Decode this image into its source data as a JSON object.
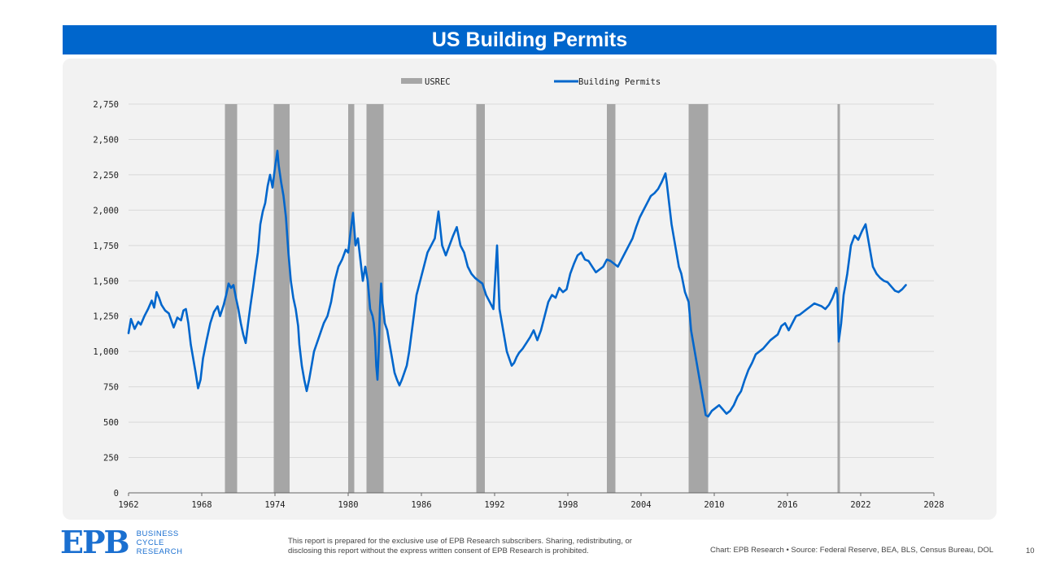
{
  "header": {
    "title": "US Building Permits"
  },
  "chart_data": {
    "type": "line",
    "legend": {
      "placement": "top-center",
      "recession_label": "USREC",
      "series_label": "Building Permits"
    },
    "grid": true,
    "ylim": [
      0,
      2750
    ],
    "yticks": [
      "0",
      "250",
      "500",
      "750",
      "1,000",
      "1,250",
      "1,500",
      "1,750",
      "2,000",
      "2,250",
      "2,500",
      "2,750"
    ],
    "xlim": [
      1962,
      2028
    ],
    "xticks": [
      "1962",
      "1968",
      "1974",
      "1980",
      "1986",
      "1992",
      "1998",
      "2004",
      "2010",
      "2016",
      "2022",
      "2028"
    ],
    "recessions": [
      [
        1969.9,
        1970.9
      ],
      [
        1973.9,
        1975.2
      ],
      [
        1980.0,
        1980.5
      ],
      [
        1981.5,
        1982.9
      ],
      [
        1990.5,
        1991.2
      ],
      [
        2001.2,
        2001.9
      ],
      [
        2007.9,
        2009.5
      ],
      [
        2020.1,
        2020.3
      ]
    ],
    "series": [
      {
        "name": "Building Permits",
        "color": "#0066cc",
        "points": [
          [
            1962.0,
            1130
          ],
          [
            1962.2,
            1230
          ],
          [
            1962.5,
            1160
          ],
          [
            1962.8,
            1210
          ],
          [
            1963.0,
            1190
          ],
          [
            1963.3,
            1250
          ],
          [
            1963.6,
            1300
          ],
          [
            1963.9,
            1360
          ],
          [
            1964.1,
            1310
          ],
          [
            1964.3,
            1420
          ],
          [
            1964.5,
            1380
          ],
          [
            1964.7,
            1330
          ],
          [
            1965.0,
            1290
          ],
          [
            1965.3,
            1270
          ],
          [
            1965.5,
            1220
          ],
          [
            1965.7,
            1170
          ],
          [
            1966.0,
            1240
          ],
          [
            1966.3,
            1220
          ],
          [
            1966.5,
            1290
          ],
          [
            1966.7,
            1300
          ],
          [
            1966.9,
            1200
          ],
          [
            1967.1,
            1050
          ],
          [
            1967.3,
            950
          ],
          [
            1967.5,
            850
          ],
          [
            1967.7,
            740
          ],
          [
            1967.9,
            800
          ],
          [
            1968.1,
            950
          ],
          [
            1968.4,
            1080
          ],
          [
            1968.7,
            1200
          ],
          [
            1969.0,
            1280
          ],
          [
            1969.3,
            1320
          ],
          [
            1969.5,
            1250
          ],
          [
            1969.8,
            1330
          ],
          [
            1970.0,
            1400
          ],
          [
            1970.2,
            1480
          ],
          [
            1970.4,
            1450
          ],
          [
            1970.6,
            1470
          ],
          [
            1970.8,
            1380
          ],
          [
            1971.0,
            1300
          ],
          [
            1971.2,
            1200
          ],
          [
            1971.4,
            1120
          ],
          [
            1971.6,
            1060
          ],
          [
            1971.8,
            1200
          ],
          [
            1972.0,
            1330
          ],
          [
            1972.2,
            1450
          ],
          [
            1972.4,
            1580
          ],
          [
            1972.6,
            1700
          ],
          [
            1972.8,
            1900
          ],
          [
            1973.0,
            1990
          ],
          [
            1973.2,
            2050
          ],
          [
            1973.4,
            2170
          ],
          [
            1973.6,
            2250
          ],
          [
            1973.8,
            2160
          ],
          [
            1974.0,
            2300
          ],
          [
            1974.2,
            2420
          ],
          [
            1974.3,
            2320
          ],
          [
            1974.5,
            2200
          ],
          [
            1974.7,
            2100
          ],
          [
            1974.9,
            1950
          ],
          [
            1975.1,
            1700
          ],
          [
            1975.3,
            1500
          ],
          [
            1975.5,
            1380
          ],
          [
            1975.7,
            1300
          ],
          [
            1975.9,
            1180
          ],
          [
            1976.0,
            1050
          ],
          [
            1976.2,
            900
          ],
          [
            1976.4,
            800
          ],
          [
            1976.6,
            720
          ],
          [
            1976.8,
            800
          ],
          [
            1977.0,
            900
          ],
          [
            1977.2,
            1000
          ],
          [
            1977.4,
            1050
          ],
          [
            1977.6,
            1100
          ],
          [
            1977.8,
            1150
          ],
          [
            1978.0,
            1200
          ],
          [
            1978.3,
            1250
          ],
          [
            1978.6,
            1350
          ],
          [
            1978.9,
            1500
          ],
          [
            1979.2,
            1600
          ],
          [
            1979.5,
            1650
          ],
          [
            1979.8,
            1720
          ],
          [
            1980.0,
            1700
          ],
          [
            1980.2,
            1850
          ],
          [
            1980.4,
            1980
          ],
          [
            1980.6,
            1750
          ],
          [
            1980.8,
            1800
          ],
          [
            1981.0,
            1650
          ],
          [
            1981.2,
            1500
          ],
          [
            1981.4,
            1600
          ],
          [
            1981.6,
            1500
          ],
          [
            1981.8,
            1300
          ],
          [
            1982.0,
            1250
          ],
          [
            1982.1,
            1200
          ],
          [
            1982.2,
            1100
          ],
          [
            1982.3,
            900
          ],
          [
            1982.4,
            800
          ],
          [
            1982.5,
            1000
          ],
          [
            1982.6,
            1300
          ],
          [
            1982.7,
            1480
          ],
          [
            1982.8,
            1350
          ],
          [
            1982.9,
            1280
          ],
          [
            1983.0,
            1200
          ],
          [
            1983.2,
            1150
          ],
          [
            1983.4,
            1050
          ],
          [
            1983.6,
            950
          ],
          [
            1983.8,
            850
          ],
          [
            1984.0,
            800
          ],
          [
            1984.2,
            760
          ],
          [
            1984.4,
            800
          ],
          [
            1984.6,
            850
          ],
          [
            1984.8,
            900
          ],
          [
            1985.0,
            1000
          ],
          [
            1985.3,
            1200
          ],
          [
            1985.6,
            1400
          ],
          [
            1985.9,
            1500
          ],
          [
            1986.2,
            1600
          ],
          [
            1986.5,
            1700
          ],
          [
            1986.8,
            1750
          ],
          [
            1987.1,
            1800
          ],
          [
            1987.4,
            1990
          ],
          [
            1987.7,
            1750
          ],
          [
            1988.0,
            1680
          ],
          [
            1988.3,
            1750
          ],
          [
            1988.6,
            1820
          ],
          [
            1988.9,
            1880
          ],
          [
            1989.2,
            1750
          ],
          [
            1989.5,
            1700
          ],
          [
            1989.8,
            1600
          ],
          [
            1990.1,
            1550
          ],
          [
            1990.4,
            1520
          ],
          [
            1990.7,
            1500
          ],
          [
            1991.0,
            1480
          ],
          [
            1991.3,
            1400
          ],
          [
            1991.6,
            1350
          ],
          [
            1991.9,
            1300
          ],
          [
            1992.2,
            1750
          ],
          [
            1992.4,
            1300
          ],
          [
            1992.6,
            1200
          ],
          [
            1992.8,
            1100
          ],
          [
            1993.0,
            1000
          ],
          [
            1993.2,
            950
          ],
          [
            1993.4,
            900
          ],
          [
            1993.6,
            920
          ],
          [
            1993.8,
            960
          ],
          [
            1994.0,
            990
          ],
          [
            1994.3,
            1020
          ],
          [
            1994.6,
            1060
          ],
          [
            1994.9,
            1100
          ],
          [
            1995.2,
            1150
          ],
          [
            1995.5,
            1080
          ],
          [
            1995.8,
            1150
          ],
          [
            1996.1,
            1250
          ],
          [
            1996.4,
            1350
          ],
          [
            1996.7,
            1400
          ],
          [
            1997.0,
            1380
          ],
          [
            1997.3,
            1450
          ],
          [
            1997.6,
            1420
          ],
          [
            1997.9,
            1440
          ],
          [
            1998.2,
            1550
          ],
          [
            1998.5,
            1620
          ],
          [
            1998.8,
            1680
          ],
          [
            1999.1,
            1700
          ],
          [
            1999.4,
            1650
          ],
          [
            1999.7,
            1640
          ],
          [
            2000.0,
            1600
          ],
          [
            2000.3,
            1560
          ],
          [
            2000.6,
            1580
          ],
          [
            2000.9,
            1600
          ],
          [
            2001.2,
            1650
          ],
          [
            2001.5,
            1640
          ],
          [
            2001.8,
            1620
          ],
          [
            2002.1,
            1600
          ],
          [
            2002.4,
            1650
          ],
          [
            2002.7,
            1700
          ],
          [
            2003.0,
            1750
          ],
          [
            2003.3,
            1800
          ],
          [
            2003.6,
            1880
          ],
          [
            2003.9,
            1950
          ],
          [
            2004.2,
            2000
          ],
          [
            2004.5,
            2050
          ],
          [
            2004.8,
            2100
          ],
          [
            2005.1,
            2120
          ],
          [
            2005.4,
            2150
          ],
          [
            2005.7,
            2200
          ],
          [
            2006.0,
            2260
          ],
          [
            2006.1,
            2200
          ],
          [
            2006.3,
            2050
          ],
          [
            2006.5,
            1900
          ],
          [
            2006.8,
            1750
          ],
          [
            2007.1,
            1600
          ],
          [
            2007.3,
            1550
          ],
          [
            2007.6,
            1420
          ],
          [
            2007.9,
            1350
          ],
          [
            2008.1,
            1150
          ],
          [
            2008.3,
            1050
          ],
          [
            2008.5,
            950
          ],
          [
            2008.7,
            850
          ],
          [
            2008.9,
            750
          ],
          [
            2009.1,
            650
          ],
          [
            2009.3,
            550
          ],
          [
            2009.5,
            540
          ],
          [
            2009.8,
            580
          ],
          [
            2010.1,
            600
          ],
          [
            2010.4,
            620
          ],
          [
            2010.7,
            590
          ],
          [
            2011.0,
            560
          ],
          [
            2011.3,
            580
          ],
          [
            2011.6,
            620
          ],
          [
            2011.9,
            680
          ],
          [
            2012.2,
            720
          ],
          [
            2012.5,
            800
          ],
          [
            2012.8,
            870
          ],
          [
            2013.1,
            920
          ],
          [
            2013.4,
            980
          ],
          [
            2013.7,
            1000
          ],
          [
            2014.0,
            1020
          ],
          [
            2014.3,
            1050
          ],
          [
            2014.6,
            1080
          ],
          [
            2014.9,
            1100
          ],
          [
            2015.2,
            1120
          ],
          [
            2015.5,
            1180
          ],
          [
            2015.8,
            1200
          ],
          [
            2016.1,
            1150
          ],
          [
            2016.4,
            1200
          ],
          [
            2016.7,
            1250
          ],
          [
            2017.0,
            1260
          ],
          [
            2017.3,
            1280
          ],
          [
            2017.6,
            1300
          ],
          [
            2017.9,
            1320
          ],
          [
            2018.2,
            1340
          ],
          [
            2018.5,
            1330
          ],
          [
            2018.8,
            1320
          ],
          [
            2019.1,
            1300
          ],
          [
            2019.4,
            1330
          ],
          [
            2019.7,
            1380
          ],
          [
            2020.0,
            1450
          ],
          [
            2020.1,
            1400
          ],
          [
            2020.2,
            1070
          ],
          [
            2020.4,
            1200
          ],
          [
            2020.6,
            1400
          ],
          [
            2020.9,
            1550
          ],
          [
            2021.2,
            1750
          ],
          [
            2021.5,
            1820
          ],
          [
            2021.8,
            1790
          ],
          [
            2022.1,
            1850
          ],
          [
            2022.4,
            1900
          ],
          [
            2022.7,
            1750
          ],
          [
            2023.0,
            1600
          ],
          [
            2023.3,
            1550
          ],
          [
            2023.6,
            1520
          ],
          [
            2023.9,
            1500
          ],
          [
            2024.2,
            1490
          ],
          [
            2024.5,
            1460
          ],
          [
            2024.8,
            1430
          ],
          [
            2025.1,
            1420
          ],
          [
            2025.4,
            1440
          ],
          [
            2025.7,
            1470
          ]
        ]
      }
    ]
  },
  "footer": {
    "logo": {
      "mark": "EPB",
      "lines": [
        "BUSINESS",
        "CYCLE",
        "RESEARCH"
      ]
    },
    "disclaimer_lines": [
      "This report is prepared for the exclusive use of EPB Research subscribers. Sharing, redistributing, or",
      "disclosing this report without the express written consent of EPB Research is prohibited."
    ],
    "source": "Chart: EPB Research  •  Source: Federal Reserve, BEA, BLS, Census Bureau, DOL",
    "page_number": "10"
  }
}
